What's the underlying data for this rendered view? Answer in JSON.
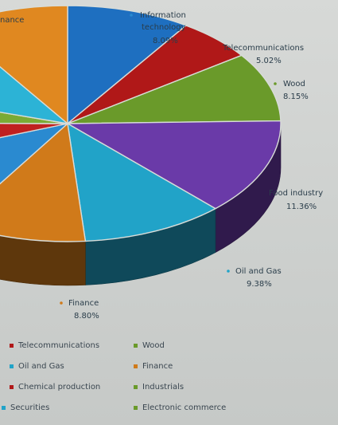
{
  "chart_data": {
    "type": "pie",
    "title": "",
    "slices": [
      {
        "label": "Information technology",
        "value": 8.09,
        "display": "8.09%",
        "color": "#1e6fc0"
      },
      {
        "label": "Telecommunications",
        "value": 5.02,
        "display": "5.02%",
        "color": "#b01818"
      },
      {
        "label": "Wood",
        "value": 8.15,
        "display": "8.15%",
        "color": "#6a9a2a"
      },
      {
        "label": "Food industry",
        "value": 11.36,
        "display": "11.36%",
        "color": "#6a3aa8"
      },
      {
        "label": "Oil and Gas",
        "value": 9.38,
        "display": "9.38%",
        "color": "#21a3c8"
      },
      {
        "label": "Finance",
        "value": 8.8,
        "display": "8.80%",
        "color": "#d07a1a"
      },
      {
        "label": "",
        "value": 9.0,
        "display": "",
        "color": "#2a8ad0"
      },
      {
        "label": "",
        "value": 5.0,
        "display": "",
        "color": "#c02020"
      },
      {
        "label": "",
        "value": 4.0,
        "display": "",
        "color": "#7aaa35"
      },
      {
        "label": "",
        "value": 9.5,
        "display": "",
        "color": "#2cb3d6"
      },
      {
        "label": "",
        "value": 8.0,
        "display": "",
        "color": "#e08820"
      }
    ],
    "top_left_label": "nance",
    "legend": [
      {
        "label": "Telecommunications",
        "color": "#b01818"
      },
      {
        "label": "Wood",
        "color": "#6a9a2a"
      },
      {
        "label": "Oil and Gas",
        "color": "#21a3c8"
      },
      {
        "label": "Finance",
        "color": "#d07a1a"
      },
      {
        "label": "Chemical production",
        "color": "#b01818"
      },
      {
        "label": "Industrials",
        "color": "#6a9a2a"
      },
      {
        "label": "Securities",
        "color": "#21a3c8"
      },
      {
        "label": "Electronic commerce",
        "color": "#6a9a2a"
      }
    ]
  },
  "labels": {
    "info_tech": {
      "line1": "Information",
      "line2": "technology",
      "pct": "8.09%"
    },
    "telecom": {
      "line1": "Telecommunications",
      "pct": "5.02%"
    },
    "wood": {
      "line1": "Wood",
      "pct": "8.15%"
    },
    "food": {
      "line1": "Food industry",
      "pct": "11.36%"
    },
    "oil": {
      "line1": "Oil and Gas",
      "pct": "9.38%"
    },
    "finance": {
      "line1": "Finance",
      "pct": "8.80%"
    }
  }
}
